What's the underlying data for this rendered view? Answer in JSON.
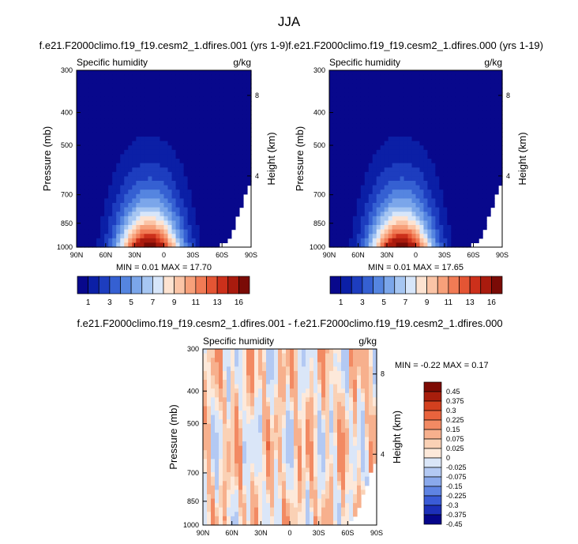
{
  "figure": {
    "title": "JJA"
  },
  "colors": {
    "panel_colors": [
      "#08088c",
      "#0b1fa6",
      "#1d3dbf",
      "#3560d2",
      "#5585e0",
      "#7ba6ea",
      "#a6c6f2",
      "#d7e6fa",
      "#fde3d1",
      "#fbc4a6",
      "#f7a07a",
      "#f17b55",
      "#e45534",
      "#cc301b",
      "#a91b0e",
      "#7a0b06"
    ],
    "diff_colors": [
      "#05058a",
      "#1c2fb8",
      "#3a5bd6",
      "#5f84e3",
      "#8aa9ec",
      "#b3c9f3",
      "#dae6f8",
      "#fde9da",
      "#fad1b5",
      "#f7b08d",
      "#f28a63",
      "#e8633d",
      "#d3401f",
      "#a81e0c",
      "#7e0b04"
    ]
  },
  "chart_data": [
    {
      "type": "heatmap",
      "title": "f.e21.F2000climo.f19_f19.cesm2_1.dfires.001 (yrs 1-9)",
      "left_label": "Specific humidity",
      "right_label": "g/kg",
      "ylabel": "Pressure (mb)",
      "ylabel_right": "Height (km)",
      "xticks": [
        "90N",
        "60N",
        "30N",
        "0",
        "30S",
        "60S",
        "90S"
      ],
      "yticks": [
        "300",
        "400",
        "500",
        "700",
        "850",
        "1000"
      ],
      "yticks_right": [
        "8",
        "4"
      ],
      "ylim": [
        1000,
        300
      ],
      "y_scale": "log",
      "min_max": "MIN =  0.01  MAX =  17.70",
      "colorbar_labels": [
        "1",
        "3",
        "5",
        "7",
        "9",
        "11",
        "13",
        "16"
      ]
    },
    {
      "type": "heatmap",
      "title": "f.e21.F2000climo.f19_f19.cesm2_1.dfires.000 (yrs 1-19)",
      "left_label": "Specific humidity",
      "right_label": "g/kg",
      "ylabel": "Pressure (mb)",
      "ylabel_right": "Height (km)",
      "xticks": [
        "90N",
        "60N",
        "30N",
        "0",
        "30S",
        "60S",
        "90S"
      ],
      "yticks": [
        "300",
        "400",
        "500",
        "700",
        "850",
        "1000"
      ],
      "yticks_right": [
        "8",
        "4"
      ],
      "ylim": [
        1000,
        300
      ],
      "y_scale": "log",
      "min_max": "MIN =  0.01  MAX =  17.65",
      "colorbar_labels": [
        "1",
        "3",
        "5",
        "7",
        "9",
        "11",
        "13",
        "16"
      ]
    },
    {
      "type": "heatmap",
      "title": "f.e21.F2000climo.f19_f19.cesm2_1.dfires.001 - f.e21.F2000climo.f19_f19.cesm2_1.dfires.000",
      "left_label": "Specific humidity",
      "right_label": "g/kg",
      "ylabel": "Pressure (mb)",
      "ylabel_right": "Height (km)",
      "xticks": [
        "90N",
        "60N",
        "30N",
        "0",
        "30S",
        "60S",
        "90S"
      ],
      "yticks": [
        "300",
        "400",
        "500",
        "700",
        "850",
        "1000"
      ],
      "yticks_right": [
        "8",
        "4"
      ],
      "ylim": [
        1000,
        300
      ],
      "y_scale": "log",
      "min_max": "MIN = -0.22  MAX =  0.17",
      "colorbar_labels": [
        "0.45",
        "0.375",
        "0.3",
        "0.225",
        "0.15",
        "0.075",
        "0.025",
        "0",
        "-0.025",
        "-0.075",
        "-0.15",
        "-0.225",
        "-0.3",
        "-0.375",
        "-0.45"
      ]
    }
  ]
}
